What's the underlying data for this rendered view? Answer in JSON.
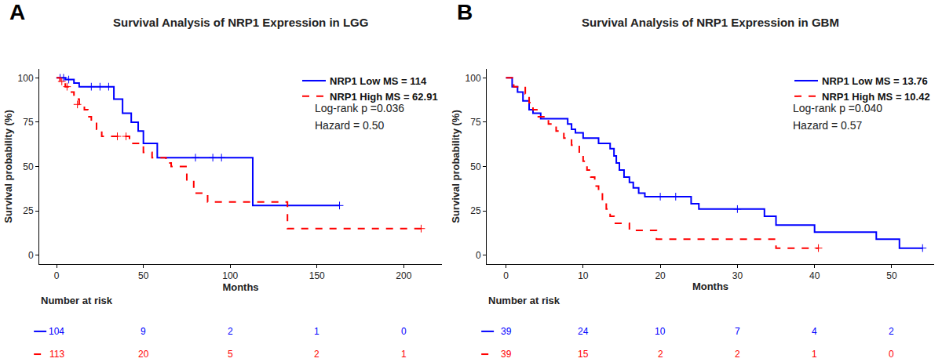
{
  "chart_data": [
    {
      "type": "step",
      "panel": "A",
      "title": "Survival Analysis of NRP1 Expression in LGG",
      "x_label": "Months",
      "y_label": "Survival probability (%)",
      "xlim": [
        -10,
        222
      ],
      "xticks": [
        0,
        50,
        100,
        150,
        200
      ],
      "ylim": [
        -5,
        105
      ],
      "yticks": [
        0,
        25,
        50,
        75,
        100
      ],
      "grid": false,
      "legend": "top right",
      "marker": "cross",
      "series": [
        {
          "name": "NRP1 Low MS = 114",
          "color": "#0000ff",
          "line_style": "solid",
          "x": [
            0,
            5,
            10,
            13,
            33,
            38,
            43,
            47,
            50,
            58,
            113,
            163
          ],
          "values": [
            100,
            99,
            97,
            95,
            88,
            80,
            75,
            70,
            63,
            55,
            28,
            28
          ],
          "censor_x": [
            2,
            4,
            7,
            20,
            25,
            30,
            80,
            90,
            95,
            163
          ],
          "censor_values": [
            100,
            100,
            99,
            95,
            95,
            95,
            55,
            55,
            55,
            28
          ]
        },
        {
          "name": "NRP1 High MS = 62.91",
          "color": "#ff0000",
          "line_style": "dashed",
          "x": [
            0,
            2,
            5,
            8,
            10,
            13,
            16,
            18,
            20,
            23,
            26,
            42,
            50,
            55,
            63,
            66,
            75,
            79,
            87,
            133,
            210
          ],
          "values": [
            100,
            98,
            95,
            92,
            88,
            85,
            82,
            78,
            75,
            71,
            67,
            63,
            58,
            55,
            52,
            50,
            42,
            35,
            30,
            15,
            15
          ],
          "censor_x": [
            3,
            6,
            12,
            35,
            40,
            210
          ],
          "censor_values": [
            98,
            95,
            85,
            67,
            67,
            15
          ]
        }
      ],
      "annotations": [
        "Log-rank p =0.036",
        "Hazard = 0.50"
      ],
      "risk_table": {
        "title": "Number at risk",
        "rows": [
          {
            "color": "#0000ff",
            "line_style": "solid",
            "values": [
              104,
              9,
              2,
              1,
              0
            ]
          },
          {
            "color": "#ff0000",
            "line_style": "dashed",
            "values": [
              113,
              20,
              5,
              2,
              1
            ]
          }
        ]
      }
    },
    {
      "type": "step",
      "panel": "B",
      "title": "Survival Analysis of NRP1 Expression in GBM",
      "x_label": "Months",
      "y_label": "Survival probability (%)",
      "xlim": [
        -2.5,
        55.5
      ],
      "xticks": [
        0,
        10,
        20,
        30,
        40,
        50
      ],
      "ylim": [
        -5,
        105
      ],
      "yticks": [
        0,
        25,
        50,
        75,
        100
      ],
      "grid": false,
      "legend": "top right",
      "marker": "cross",
      "series": [
        {
          "name": "NRP1 Low MS = 13.76",
          "color": "#0000ff",
          "line_style": "solid",
          "x": [
            0,
            0.8,
            1.5,
            2.2,
            3,
            3.5,
            4.5,
            8,
            8.5,
            9,
            10,
            12,
            13.5,
            14,
            14.3,
            14.7,
            15.3,
            16,
            16.5,
            17.2,
            18,
            24,
            25,
            33.5,
            35,
            40,
            48,
            51,
            54
          ],
          "values": [
            100,
            95,
            92,
            87,
            82,
            80,
            77,
            74,
            71,
            69,
            66,
            63,
            60,
            56,
            52,
            48,
            44,
            41,
            38,
            35,
            33,
            29,
            26,
            22,
            17,
            13,
            9,
            4,
            4
          ],
          "censor_x": [
            20,
            22,
            30,
            54
          ],
          "censor_values": [
            33,
            33,
            26,
            4
          ]
        },
        {
          "name": "NRP1 High MS = 10.42",
          "color": "#ff0000",
          "line_style": "dashed",
          "x": [
            0,
            1,
            2.5,
            3,
            3.5,
            4,
            5.5,
            6.5,
            7.5,
            8.5,
            9.5,
            10,
            10.5,
            11,
            11.5,
            12,
            12.5,
            13,
            13.5,
            14,
            16,
            19.5,
            35,
            40.5
          ],
          "values": [
            100,
            95,
            91,
            86,
            82,
            78,
            74,
            70,
            66,
            62,
            57,
            53,
            48,
            44,
            39,
            35,
            31,
            26,
            22,
            18,
            14,
            9,
            4,
            4
          ],
          "censor_x": [
            40.5
          ],
          "censor_values": [
            4
          ]
        }
      ],
      "annotations": [
        "Log-rank p =0.040",
        "Hazard = 0.57"
      ],
      "risk_table": {
        "title": "Number at risk",
        "rows": [
          {
            "color": "#0000ff",
            "line_style": "solid",
            "values": [
              39,
              24,
              10,
              7,
              4,
              2
            ]
          },
          {
            "color": "#ff0000",
            "line_style": "dashed",
            "values": [
              39,
              15,
              2,
              2,
              1,
              0
            ]
          }
        ]
      }
    }
  ]
}
